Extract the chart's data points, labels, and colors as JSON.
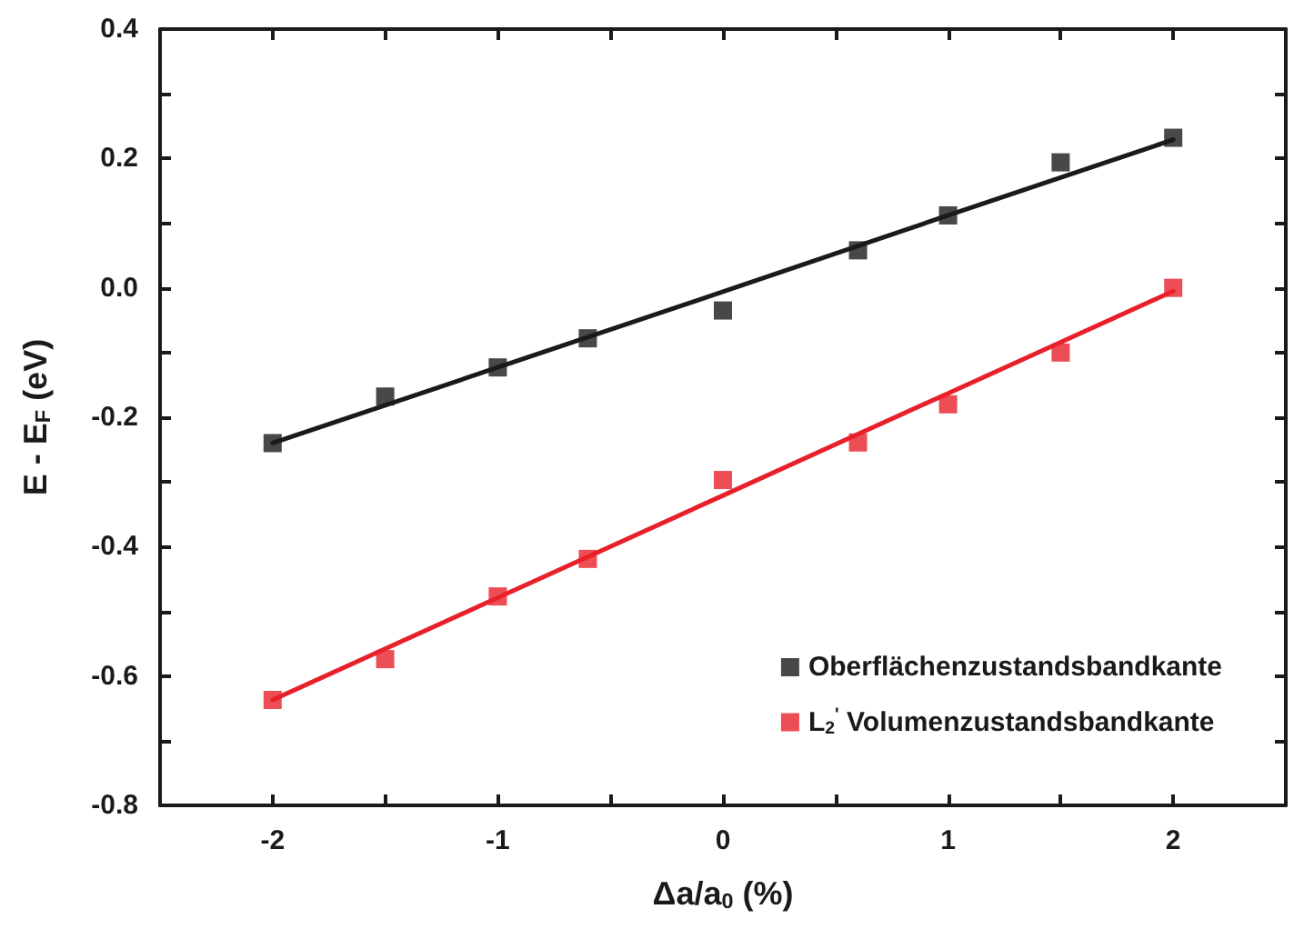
{
  "chart_data": {
    "type": "scatter",
    "xlabel": "Δa/a$_{0}$ (%)",
    "ylabel": "E - E$_{F}$ (eV)",
    "x": [
      -2,
      -1.5,
      -1,
      -0.6,
      0,
      0.6,
      1,
      1.5,
      2
    ],
    "series": [
      {
        "name": "Oberflächenzustandsbandkante",
        "color": "#1a1a1a",
        "marker": "square",
        "values": [
          -0.24,
          -0.168,
          -0.123,
          -0.078,
          -0.035,
          0.058,
          0.112,
          0.194,
          0.232
        ]
      },
      {
        "name": "L$_{2}$$^{'}$ Volumenzustandsbandkante",
        "color": "#e8202a",
        "marker": "square",
        "values": [
          -0.637,
          -0.574,
          -0.477,
          -0.419,
          -0.297,
          -0.239,
          -0.18,
          -0.1,
          0.0
        ]
      },
      {
        "type": "line",
        "x": [
          -2,
          -1,
          0,
          1,
          2
        ],
        "color": "#1a1a1a",
        "marker": "none",
        "line_style": "solid",
        "values": [
          -0.24,
          -0.123,
          -0.006,
          0.112,
          0.229
        ]
      },
      {
        "type": "line",
        "x": [
          -2,
          -1,
          0,
          1,
          2
        ],
        "color": "#e8202a",
        "marker": "none",
        "line_style": "solid",
        "values": [
          -0.637,
          -0.479,
          -0.321,
          -0.163,
          -0.005
        ]
      }
    ],
    "xlim": [
      -2.5,
      2.5
    ],
    "xticks": [
      -2,
      {
        "value": -1.5,
        "label": null
      },
      -1,
      {
        "value": -0.5,
        "label": null
      },
      0,
      {
        "value": 0.5,
        "label": null
      },
      1,
      {
        "value": 1.5,
        "label": null
      },
      2
    ],
    "ylim": [
      -0.8,
      0.4
    ],
    "yticks": [
      {
        "value": -0.8,
        "label": "-0.8"
      },
      {
        "value": -0.7,
        "label": null
      },
      {
        "value": -0.6,
        "label": "-0.6"
      },
      {
        "value": -0.5,
        "label": null
      },
      {
        "value": -0.4,
        "label": "-0.4"
      },
      {
        "value": -0.3,
        "label": null
      },
      {
        "value": -0.2,
        "label": "-0.2"
      },
      {
        "value": -0.1,
        "label": null
      },
      {
        "value": 0,
        "label": "0.0"
      },
      {
        "value": 0.1,
        "label": null
      },
      {
        "value": 0.2,
        "label": "0.2"
      },
      {
        "value": 0.3,
        "label": null
      },
      {
        "value": 0.4,
        "label": "0.4"
      }
    ],
    "grid": false,
    "legend": "bottom right"
  }
}
